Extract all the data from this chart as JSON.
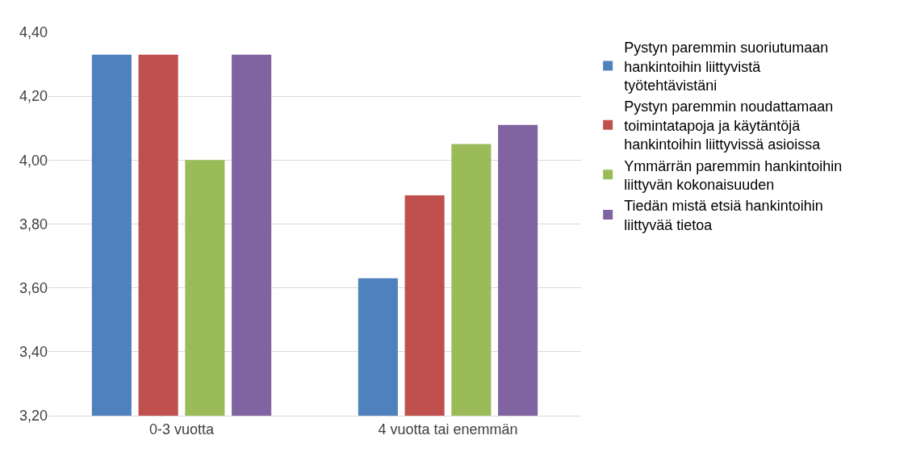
{
  "chart_data": {
    "type": "bar",
    "categories": [
      "0-3 vuotta",
      "4 vuotta tai enemmän"
    ],
    "series": [
      {
        "name": "Pystyn paremmin suoriutumaan hankintoihin liittyvistä työtehtävistäni",
        "color": "#4f81bd",
        "values": [
          4.33,
          3.63
        ]
      },
      {
        "name": "Pystyn paremmin noudattamaan toimintatapoja ja käytäntöjä hankintoihin liittyvissä asioissa",
        "color": "#c0504d",
        "values": [
          4.33,
          3.89
        ]
      },
      {
        "name": "Ymmärrän paremmin hankintoihin liittyvän kokonaisuuden",
        "color": "#9bbb59",
        "values": [
          4.0,
          4.05
        ]
      },
      {
        "name": "Tiedän mistä etsiä hankintoihin liittyvää tietoa",
        "color": "#8064a2",
        "values": [
          4.33,
          4.11
        ]
      }
    ],
    "ylim": [
      3.2,
      4.4
    ],
    "yticks": [
      {
        "value": 3.2,
        "label": "3,20"
      },
      {
        "value": 3.4,
        "label": "3,40"
      },
      {
        "value": 3.6,
        "label": "3,60"
      },
      {
        "value": 3.8,
        "label": "3,80"
      },
      {
        "value": 4.0,
        "label": "4,00"
      },
      {
        "value": 4.2,
        "label": "4,20"
      },
      {
        "value": 4.4,
        "label": "4,40"
      }
    ],
    "grid": "y",
    "legend": "right"
  }
}
